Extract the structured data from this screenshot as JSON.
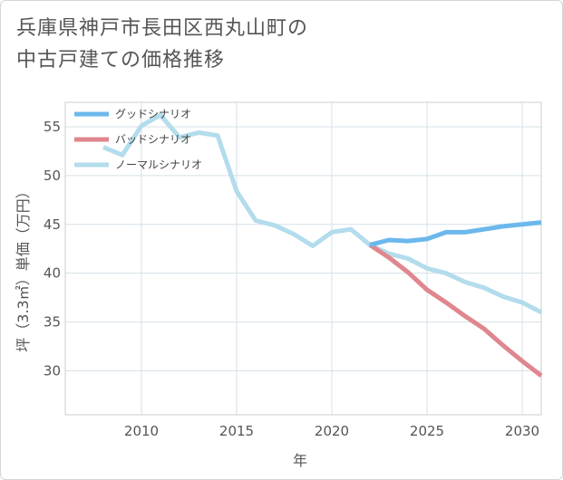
{
  "title": "兵庫県神戸市長田区西丸山町の\n中古戸建ての価格推移",
  "chart_data": {
    "type": "line",
    "xlabel": "年",
    "ylabel": "坪（3.3㎡）単価（万円）",
    "xlim": [
      2006,
      2031
    ],
    "ylim": [
      25.5,
      57.5
    ],
    "x_ticks": [
      2010,
      2015,
      2020,
      2025,
      2030
    ],
    "y_ticks": [
      30,
      35,
      40,
      45,
      50,
      55
    ],
    "grid": true,
    "legend_position": "top-left",
    "series": [
      {
        "name": "グッドシナリオ",
        "color": "#6cb8ec",
        "points": [
          [
            2022,
            42.9
          ],
          [
            2023,
            43.4
          ],
          [
            2024,
            43.3
          ],
          [
            2025,
            43.5
          ],
          [
            2026,
            44.2
          ],
          [
            2027,
            44.2
          ],
          [
            2028,
            44.5
          ],
          [
            2029,
            44.8
          ],
          [
            2030,
            45.0
          ],
          [
            2031,
            45.2
          ]
        ]
      },
      {
        "name": "バッドシナリオ",
        "color": "#e0868e",
        "points": [
          [
            2022,
            42.9
          ],
          [
            2023,
            41.6
          ],
          [
            2024,
            40.1
          ],
          [
            2025,
            38.3
          ],
          [
            2026,
            37.0
          ],
          [
            2027,
            35.6
          ],
          [
            2028,
            34.3
          ],
          [
            2029,
            32.6
          ],
          [
            2030,
            31.0
          ],
          [
            2031,
            29.5
          ]
        ]
      },
      {
        "name": "ノーマルシナリオ",
        "color": "#b3dcec",
        "points": [
          [
            2008,
            52.9
          ],
          [
            2009,
            52.1
          ],
          [
            2010,
            55.1
          ],
          [
            2011,
            56.2
          ],
          [
            2012,
            53.9
          ],
          [
            2013,
            54.4
          ],
          [
            2014,
            54.1
          ],
          [
            2015,
            48.4
          ],
          [
            2016,
            45.4
          ],
          [
            2017,
            44.9
          ],
          [
            2018,
            44.0
          ],
          [
            2019,
            42.8
          ],
          [
            2020,
            44.2
          ],
          [
            2021,
            44.5
          ],
          [
            2022,
            42.9
          ],
          [
            2023,
            42.0
          ],
          [
            2024,
            41.5
          ],
          [
            2025,
            40.5
          ],
          [
            2026,
            40.0
          ],
          [
            2027,
            39.1
          ],
          [
            2028,
            38.5
          ],
          [
            2029,
            37.6
          ],
          [
            2030,
            37.0
          ],
          [
            2031,
            36.0
          ]
        ]
      }
    ]
  }
}
